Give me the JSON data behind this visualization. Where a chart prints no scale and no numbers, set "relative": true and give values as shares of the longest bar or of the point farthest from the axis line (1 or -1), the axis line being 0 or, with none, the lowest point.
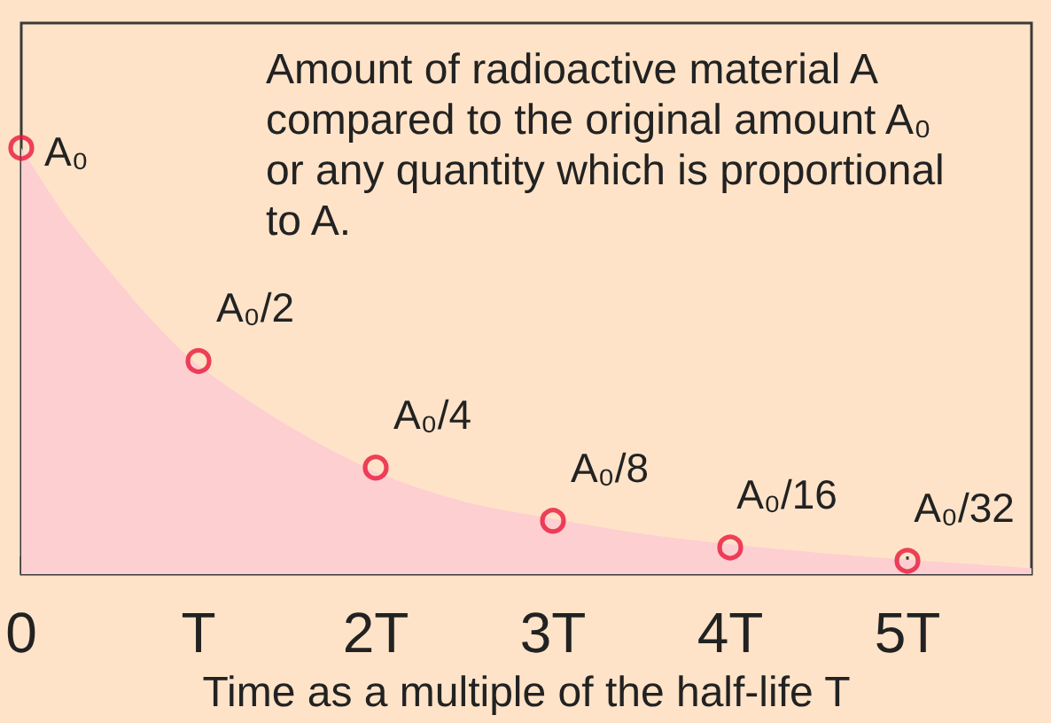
{
  "chart_data": {
    "type": "scatter",
    "title": "Amount of radioactive material A compared to the original amount A₀ or any quantity which is proportional to A.",
    "xlabel": "Time as a multiple of the half-life T",
    "relative": true,
    "xlim": [
      0,
      5.7
    ],
    "xticks": [
      0,
      {
        "value": 1,
        "label": "T"
      },
      {
        "value": 2,
        "label": "2T"
      },
      {
        "value": 3,
        "label": "3T"
      },
      {
        "value": 4,
        "label": "4T"
      },
      {
        "value": 5,
        "label": "5T"
      }
    ],
    "series": [
      {
        "type": "area",
        "color": "#fdcfd0",
        "x": [
          0,
          0.25,
          0.5,
          0.75,
          1,
          1.5,
          2,
          2.5,
          3,
          3.5,
          4,
          4.5,
          5,
          5.5,
          5.7
        ],
        "values": [
          1,
          0.84,
          0.71,
          0.59,
          0.49,
          0.35,
          0.24,
          0.17,
          0.13,
          0.095,
          0.07,
          0.05,
          0.034,
          0.02,
          0.014
        ]
      },
      {
        "color": "#e8173a",
        "marker": "circle",
        "x": [
          0,
          1,
          2,
          3,
          4,
          5
        ],
        "values": [
          1,
          0.5,
          0.25,
          0.125,
          0.0625,
          0.03125
        ]
      }
    ],
    "annotations": [
      {
        "text": "A₀",
        "x": 0,
        "y": 1
      },
      {
        "text": "A₀/2",
        "x": 1,
        "y": 0.5
      },
      {
        "text": "A₀/4",
        "x": 2,
        "y": 0.25
      },
      {
        "text": "A₀/8",
        "x": 3,
        "y": 0.125
      },
      {
        "text": "A₀/16",
        "x": 4,
        "y": 0.0625
      },
      {
        "text": "A₀/32",
        "x": 5,
        "y": 0.03125
      }
    ]
  }
}
